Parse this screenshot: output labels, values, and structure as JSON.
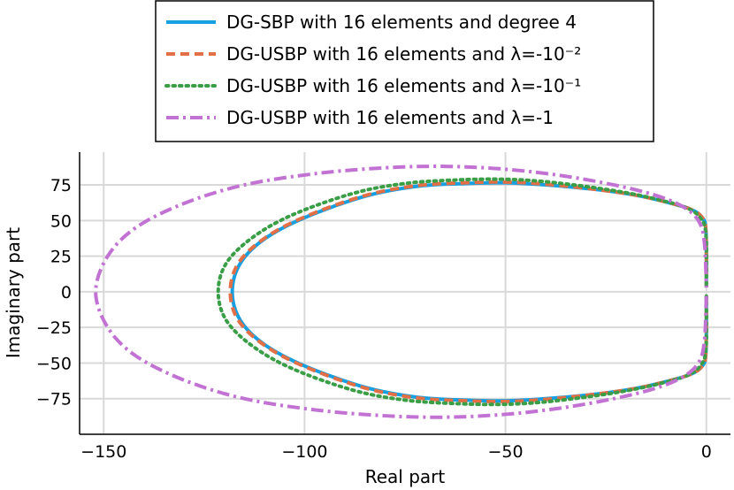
{
  "chart_data": {
    "type": "line",
    "xlabel": "Real part",
    "ylabel": "Imaginary part",
    "xlim": [
      -156,
      6
    ],
    "ylim": [
      -100,
      98
    ],
    "grid": true,
    "legend_position": "top (outside plot area)",
    "xticks": [
      -150,
      -100,
      -50,
      0
    ],
    "xtick_labels": [
      "−150",
      "−100",
      "−50",
      "0"
    ],
    "yticks": [
      75,
      50,
      25,
      0,
      -25,
      -50,
      -75
    ],
    "ytick_labels": [
      "75",
      "50",
      "25",
      "0",
      "−25",
      "−50",
      "−75"
    ],
    "series": [
      {
        "name": "DG-SBP with 16 elements and degree 4",
        "color": "#179fe0",
        "style": "solid",
        "points": [
          [
            0,
            -3
          ],
          [
            -0.1,
            -42
          ],
          [
            -1,
            -52
          ],
          [
            -4,
            -58
          ],
          [
            -10,
            -63
          ],
          [
            -18,
            -68
          ],
          [
            -28,
            -72
          ],
          [
            -40,
            -75
          ],
          [
            -50,
            -76.5
          ],
          [
            -60,
            -76
          ],
          [
            -72,
            -74
          ],
          [
            -85,
            -67
          ],
          [
            -100,
            -52
          ],
          [
            -110,
            -37
          ],
          [
            -116,
            -20
          ],
          [
            -118,
            0
          ],
          [
            -116,
            20
          ],
          [
            -110,
            37
          ],
          [
            -100,
            52
          ],
          [
            -85,
            67
          ],
          [
            -72,
            74
          ],
          [
            -60,
            76
          ],
          [
            -50,
            76.5
          ],
          [
            -40,
            75
          ],
          [
            -28,
            72
          ],
          [
            -18,
            68
          ],
          [
            -10,
            63
          ],
          [
            -4,
            58
          ],
          [
            -1,
            52
          ],
          [
            -0.1,
            42
          ],
          [
            0,
            3
          ]
        ]
      },
      {
        "name": "DG-USBP with 16 elements and λ=-10⁻²",
        "color": "#e26f46",
        "style": "dash",
        "points": [
          [
            0,
            -3
          ],
          [
            -0.1,
            -42
          ],
          [
            -1,
            -52
          ],
          [
            -4,
            -58
          ],
          [
            -10,
            -63
          ],
          [
            -18,
            -68
          ],
          [
            -28,
            -72
          ],
          [
            -40,
            -75.5
          ],
          [
            -50,
            -77
          ],
          [
            -60,
            -76.5
          ],
          [
            -72,
            -74.5
          ],
          [
            -85,
            -67.5
          ],
          [
            -100,
            -52.5
          ],
          [
            -110,
            -37.5
          ],
          [
            -116.5,
            -20
          ],
          [
            -118.5,
            0
          ],
          [
            -116.5,
            20
          ],
          [
            -110,
            37.5
          ],
          [
            -100,
            52.5
          ],
          [
            -85,
            67.5
          ],
          [
            -72,
            74.5
          ],
          [
            -60,
            76.5
          ],
          [
            -50,
            77
          ],
          [
            -40,
            75.5
          ],
          [
            -28,
            72
          ],
          [
            -18,
            68
          ],
          [
            -10,
            63
          ],
          [
            -4,
            58
          ],
          [
            -1,
            52
          ],
          [
            -0.1,
            42
          ],
          [
            0,
            3
          ]
        ]
      },
      {
        "name": "DG-USBP with 16 elements and λ=-10⁻¹",
        "color": "#3a9e47",
        "style": "dot",
        "points": [
          [
            0,
            -3
          ],
          [
            -0.1,
            -40
          ],
          [
            -1.5,
            -52
          ],
          [
            -5,
            -59
          ],
          [
            -11,
            -64
          ],
          [
            -19,
            -69
          ],
          [
            -29,
            -73.5
          ],
          [
            -41,
            -77.5
          ],
          [
            -51,
            -79
          ],
          [
            -62,
            -78.5
          ],
          [
            -75,
            -76
          ],
          [
            -88,
            -69
          ],
          [
            -103,
            -54
          ],
          [
            -113,
            -38
          ],
          [
            -119.5,
            -20
          ],
          [
            -121.5,
            0
          ],
          [
            -119.5,
            20
          ],
          [
            -113,
            38
          ],
          [
            -103,
            54
          ],
          [
            -88,
            69
          ],
          [
            -75,
            76
          ],
          [
            -62,
            78.5
          ],
          [
            -51,
            79
          ],
          [
            -41,
            77.5
          ],
          [
            -29,
            73.5
          ],
          [
            -19,
            69
          ],
          [
            -11,
            64
          ],
          [
            -5,
            59
          ],
          [
            -1.5,
            52
          ],
          [
            -0.1,
            40
          ],
          [
            0,
            3
          ]
        ]
      },
      {
        "name": "DG-USBP with 16 elements and λ=-1",
        "color": "#c272d3",
        "style": "dashdot",
        "points": [
          [
            0,
            -3
          ],
          [
            -0.5,
            -35
          ],
          [
            -2,
            -50
          ],
          [
            -6,
            -60
          ],
          [
            -13,
            -68
          ],
          [
            -23,
            -75
          ],
          [
            -36,
            -81.5
          ],
          [
            -50,
            -86
          ],
          [
            -65,
            -88
          ],
          [
            -80,
            -87
          ],
          [
            -97,
            -83
          ],
          [
            -115,
            -75
          ],
          [
            -130,
            -62
          ],
          [
            -142,
            -45
          ],
          [
            -149,
            -25
          ],
          [
            -152,
            0
          ],
          [
            -149,
            25
          ],
          [
            -142,
            45
          ],
          [
            -130,
            62
          ],
          [
            -115,
            75
          ],
          [
            -97,
            83
          ],
          [
            -80,
            87
          ],
          [
            -65,
            88
          ],
          [
            -50,
            86
          ],
          [
            -36,
            81.5
          ],
          [
            -23,
            75
          ],
          [
            -13,
            68
          ],
          [
            -6,
            60
          ],
          [
            -2,
            50
          ],
          [
            -0.5,
            35
          ],
          [
            0,
            3
          ]
        ]
      }
    ]
  }
}
